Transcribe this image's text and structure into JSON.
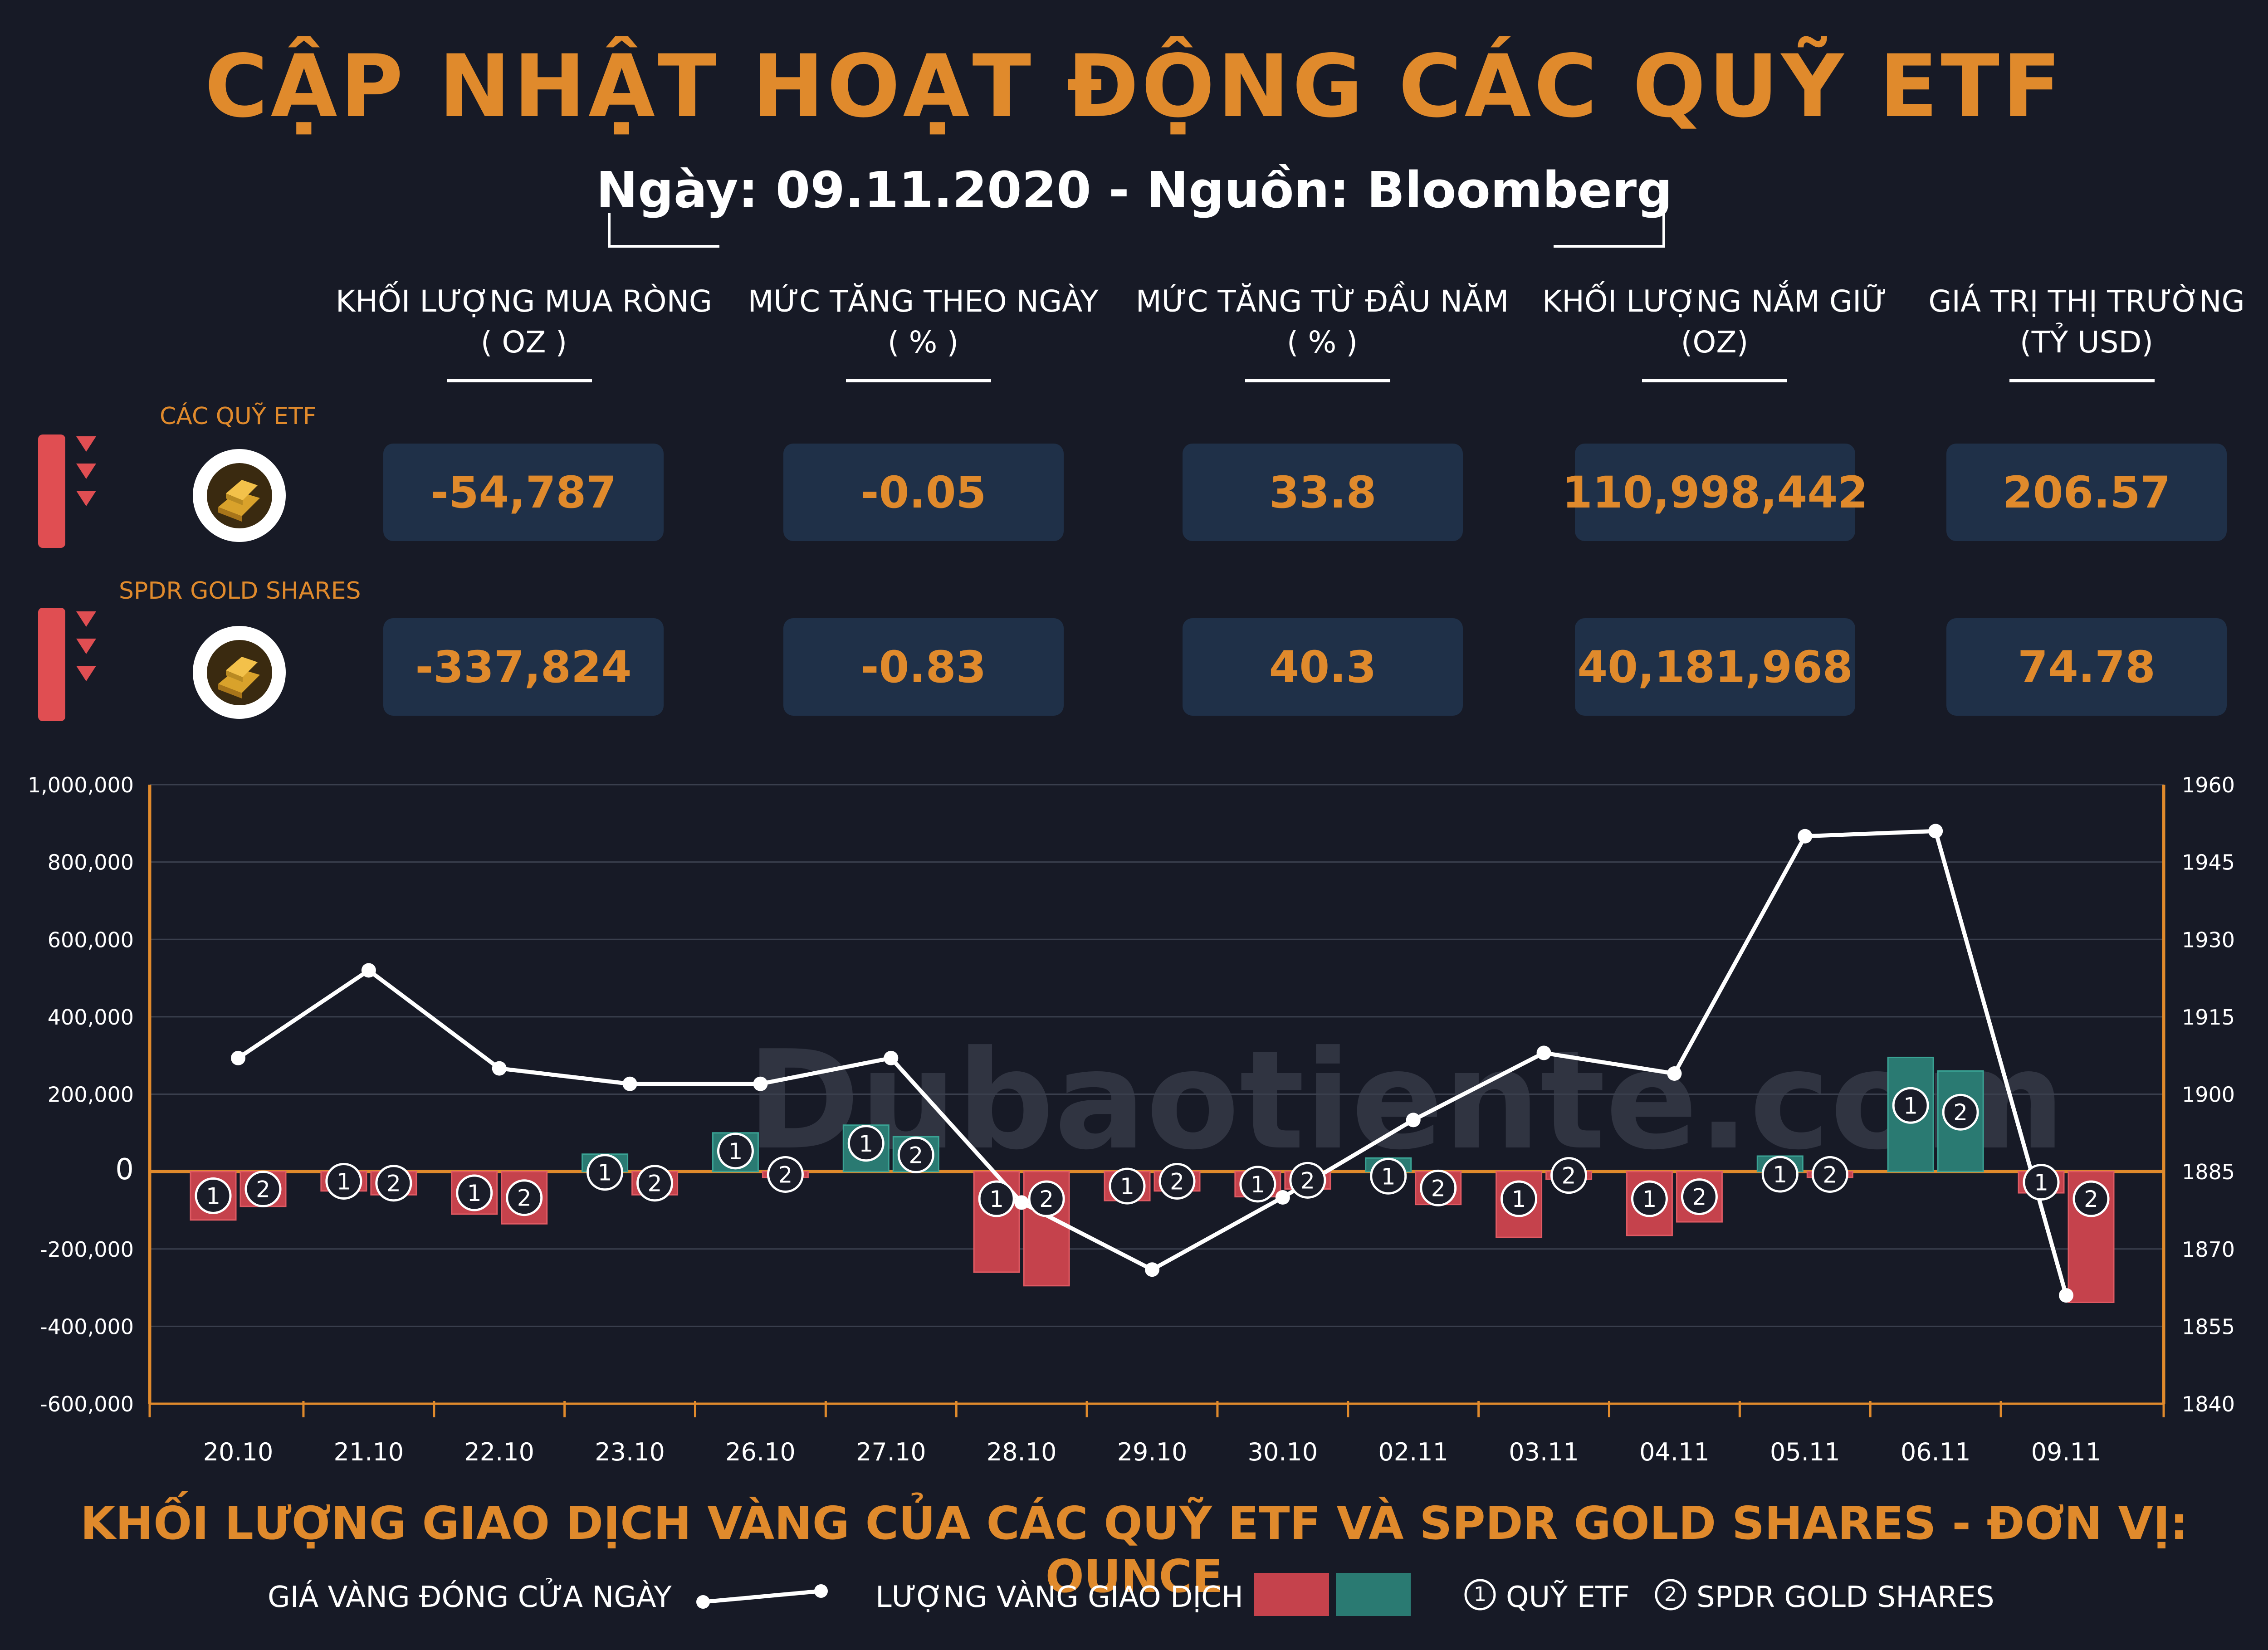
{
  "header": {
    "title": "CẬP NHẬT HOẠT ĐỘNG CÁC QUỸ ETF",
    "subtitle": "Ngày: 09.11.2020 - Nguồn: Bloomberg"
  },
  "columns": [
    {
      "label": "KHỐI LƯỢNG MUA RÒNG",
      "unit": "( OZ )"
    },
    {
      "label": "MỨC TĂNG THEO NGÀY",
      "unit": "( % )"
    },
    {
      "label": "MỨC TĂNG TỪ ĐẦU NĂM",
      "unit": "( % )"
    },
    {
      "label": "KHỐI LƯỢNG NẮM GIỮ",
      "unit": "(OZ)"
    },
    {
      "label": "GIÁ TRỊ THỊ TRƯỜNG",
      "unit": "(TỶ USD)"
    }
  ],
  "rows": [
    {
      "name": "CÁC QUỸ ETF",
      "values": [
        "-54,787",
        "-0.05",
        "33.8",
        "110,998,442",
        "206.57"
      ]
    },
    {
      "name": "SPDR GOLD SHARES",
      "values": [
        "-337,824",
        "-0.83",
        "40.3",
        "40,181,968",
        "74.78"
      ]
    }
  ],
  "watermark": "Dubaotiente.com",
  "chart_data": {
    "type": "bar",
    "categories": [
      "20.10",
      "21.10",
      "22.10",
      "23.10",
      "26.10",
      "27.10",
      "28.10",
      "29.10",
      "30.10",
      "02.11",
      "03.11",
      "04.11",
      "05.11",
      "06.11",
      "09.11"
    ],
    "series": [
      {
        "name": "QUỸ ETF",
        "marker": "1",
        "type": "bar",
        "axis": "left",
        "values": [
          -125000,
          -50000,
          -110000,
          45000,
          100000,
          120000,
          -260000,
          -75000,
          -65000,
          35000,
          -170000,
          -165000,
          40000,
          295000,
          -55000
        ]
      },
      {
        "name": "SPDR GOLD SHARES",
        "marker": "2",
        "type": "bar",
        "axis": "left",
        "values": [
          -90000,
          -60000,
          -135000,
          -60000,
          -15000,
          90000,
          -295000,
          -50000,
          -45000,
          -85000,
          -20000,
          -130000,
          -15000,
          260000,
          -338000
        ]
      },
      {
        "name": "GIÁ VÀNG ĐÓNG CỬA NGÀY",
        "type": "line",
        "axis": "right",
        "values": [
          1907,
          1924,
          1905,
          1902,
          1902,
          1907,
          1879,
          1866,
          1880,
          1895,
          1908,
          1904,
          1950,
          1951,
          1861
        ]
      }
    ],
    "yleft": {
      "ylim": [
        -600000,
        1000000
      ],
      "ticks": [
        "-600,000",
        "-400,000",
        "-200,000",
        "0",
        "200,000",
        "400,000",
        "600,000",
        "800,000",
        "1,000,000"
      ]
    },
    "yright": {
      "ylim": [
        1840,
        1960
      ],
      "ticks": [
        "1840",
        "1855",
        "1870",
        "1885",
        "1900",
        "1915",
        "1930",
        "1945",
        "1960"
      ]
    },
    "colors": {
      "negative": "#c5424c",
      "positive": "#2a7a72",
      "line": "#ffffff",
      "axis": "#e08a2c"
    }
  },
  "caption": "KHỐI LƯỢNG GIAO DỊCH VÀNG CỦA CÁC QUỸ ETF VÀ SPDR GOLD SHARES - ĐƠN VỊ: OUNCE",
  "legend": {
    "line_label": "GIÁ VÀNG ĐÓNG CỬA NGÀY",
    "bar_label": "LƯỢNG VÀNG GIAO DỊCH",
    "marker1": "1",
    "marker1_label": "QUỸ ETF",
    "marker2": "2",
    "marker2_label": "SPDR GOLD SHARES"
  }
}
